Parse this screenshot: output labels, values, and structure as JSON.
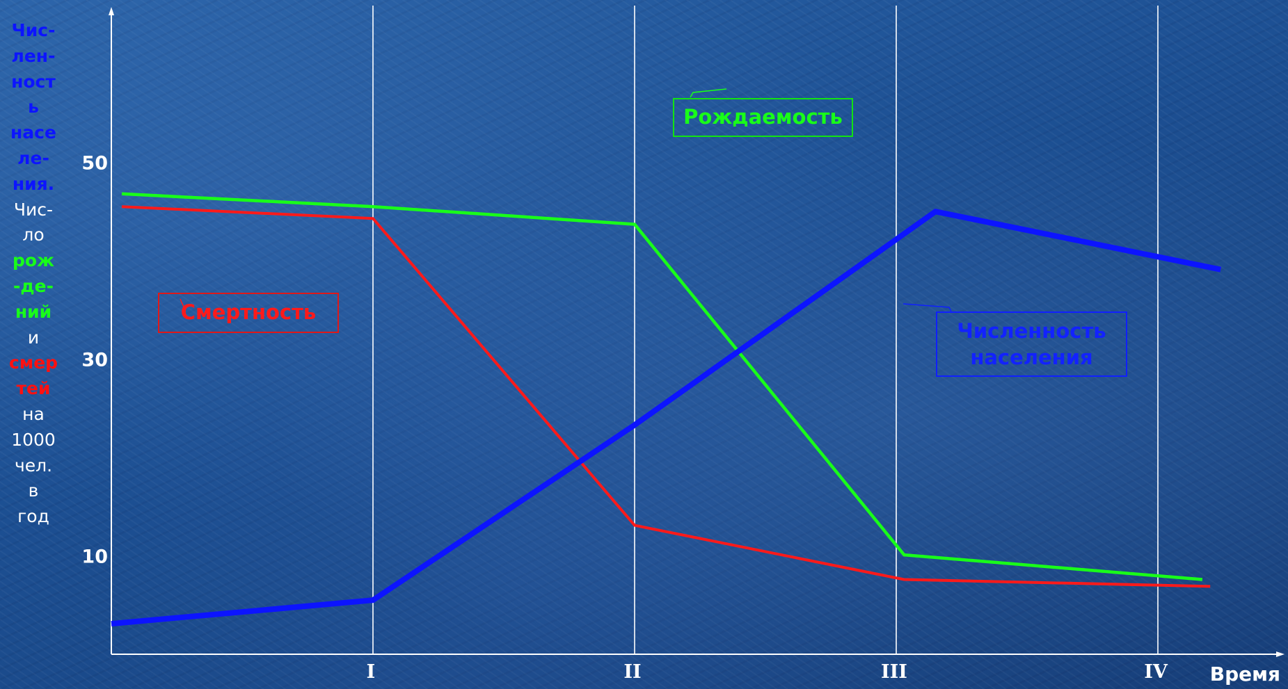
{
  "chart_data": {
    "type": "line",
    "xlabel": "Время",
    "x_ticks": [
      "I",
      "II",
      "III",
      "IV"
    ],
    "y_ticks": [
      10,
      30,
      50
    ],
    "ylabel_parts": [
      {
        "text": "Чис-",
        "color": "blue"
      },
      {
        "text": "лен-",
        "color": "blue"
      },
      {
        "text": "ност",
        "color": "blue"
      },
      {
        "text": "ь",
        "color": "blue"
      },
      {
        "text": "насе",
        "color": "blue"
      },
      {
        "text": "ле-",
        "color": "blue"
      },
      {
        "text": "ния.",
        "color": "blue"
      },
      {
        "text": "Чис-",
        "color": "white"
      },
      {
        "text": "ло",
        "color": "white"
      },
      {
        "text": "рож",
        "color": "green"
      },
      {
        "text": "-де-",
        "color": "green"
      },
      {
        "text": "ний",
        "color": "green"
      },
      {
        "text": "и",
        "color": "white"
      },
      {
        "text": "смер",
        "color": "red"
      },
      {
        "text": "тей",
        "color": "red"
      },
      {
        "text": "на",
        "color": "white"
      },
      {
        "text": "1000",
        "color": "white"
      },
      {
        "text": "чел.",
        "color": "white"
      },
      {
        "text": "в",
        "color": "white"
      },
      {
        "text": "год",
        "color": "white"
      }
    ],
    "xlim": [
      0,
      4.4
    ],
    "ylim": [
      0,
      58
    ],
    "series": [
      {
        "name": "Рождаемость",
        "color": "#19ff19",
        "points": [
          [
            0.04,
            46.8
          ],
          [
            1.0,
            45.5
          ],
          [
            2.0,
            43.7
          ],
          [
            3.03,
            10.1
          ],
          [
            4.17,
            7.6
          ]
        ]
      },
      {
        "name": "Смертность",
        "color": "#ff1a1a",
        "points": [
          [
            0.04,
            45.5
          ],
          [
            1.0,
            44.3
          ],
          [
            2.0,
            13.1
          ],
          [
            3.03,
            7.6
          ],
          [
            4.2,
            6.9
          ]
        ]
      },
      {
        "name": "Численность населения",
        "color": "#0c14ff",
        "points": [
          [
            0.0,
            3.1
          ],
          [
            1.0,
            5.5
          ],
          [
            2.0,
            23.3
          ],
          [
            3.15,
            45.0
          ],
          [
            4.24,
            39.1
          ]
        ]
      }
    ],
    "legend": [
      {
        "label": "Рождаемость",
        "color": "#19ff19"
      },
      {
        "label": "Смертность",
        "color": "#ff1a1a"
      },
      {
        "label_lines": [
          "Численность",
          "населения"
        ],
        "color": "#0c14ff"
      }
    ],
    "grid": "vertical lines at I, II, III, IV"
  },
  "colors": {
    "births": "#19ff19",
    "deaths": "#ff1a1a",
    "population": "#0c14ff",
    "axis": "#ffffff"
  }
}
